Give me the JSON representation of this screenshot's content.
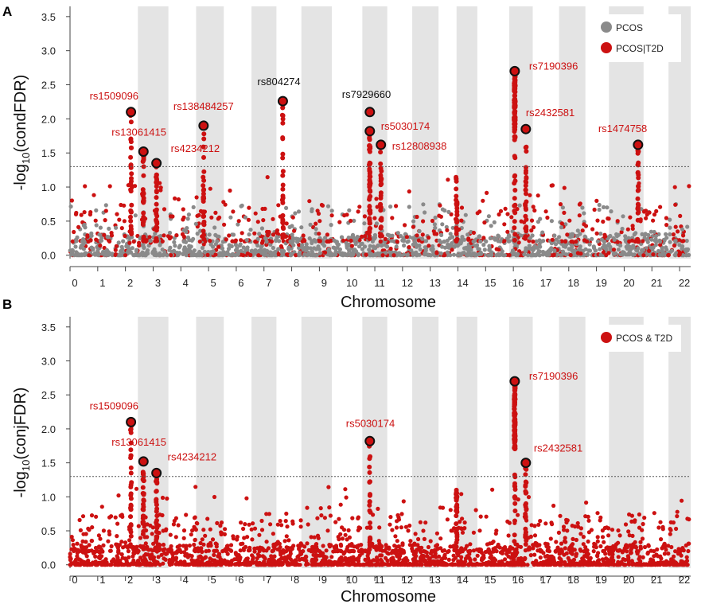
{
  "colors": {
    "red": "#cc1111",
    "gray": "#8a8a8a",
    "band": "#e4e4e4",
    "threshold": "#555555"
  },
  "chart_data": [
    {
      "type": "scatter",
      "panel_label": "A",
      "title": "",
      "xlabel": "Chromosome",
      "ylabel_prefix": "-log",
      "ylabel_sub": "10",
      "ylabel_suffix": "(condFDR)",
      "ylim": [
        -0.05,
        3.65
      ],
      "yticks": [
        "0.0",
        "0.5",
        "1.0",
        "1.5",
        "2.0",
        "2.5",
        "3.0",
        "3.5"
      ],
      "xlim": [
        0,
        22.4
      ],
      "xticks": [
        "0",
        "1",
        "2",
        "3",
        "4",
        "5",
        "6",
        "7",
        "8",
        "9",
        "10",
        "11",
        "12",
        "13",
        "14",
        "15",
        "16",
        "17",
        "18",
        "19",
        "20",
        "21",
        "22"
      ],
      "threshold": 1.3,
      "series": [
        {
          "name": "PCOS",
          "color": "gray"
        },
        {
          "name": "PCOS|T2D",
          "color": "red"
        }
      ],
      "legend": {
        "position": "top-right",
        "entries": [
          "PCOS",
          "PCOS|T2D"
        ]
      },
      "lead_snps": [
        {
          "name": "rs1509096",
          "x": 2.2,
          "y": 2.1,
          "label_color": "red"
        },
        {
          "name": "rs13061415",
          "x": 2.65,
          "y": 1.52,
          "label_color": "red"
        },
        {
          "name": "rs4234212",
          "x": 3.12,
          "y": 1.35,
          "label_color": "red"
        },
        {
          "name": "rs138484257",
          "x": 4.82,
          "y": 1.9,
          "label_color": "red"
        },
        {
          "name": "rs804274",
          "x": 7.68,
          "y": 2.26,
          "label_color": "black"
        },
        {
          "name": "rs7929660",
          "x": 10.82,
          "y": 2.1,
          "label_color": "black"
        },
        {
          "name": "rs5030174",
          "x": 10.82,
          "y": 1.82,
          "label_color": "red"
        },
        {
          "name": "rs12808938",
          "x": 11.22,
          "y": 1.62,
          "label_color": "red"
        },
        {
          "name": "rs7190396",
          "x": 16.05,
          "y": 2.7,
          "label_color": "red"
        },
        {
          "name": "rs2432581",
          "x": 16.45,
          "y": 1.85,
          "label_color": "red"
        },
        {
          "name": "rs1474758",
          "x": 20.5,
          "y": 1.62,
          "label_color": "red"
        }
      ]
    },
    {
      "type": "scatter",
      "panel_label": "B",
      "title": "",
      "xlabel": "Chromosome",
      "ylabel_prefix": "-log",
      "ylabel_sub": "10",
      "ylabel_suffix": "(conjFDR)",
      "ylim": [
        -0.05,
        3.65
      ],
      "yticks": [
        "0.0",
        "0.5",
        "1.0",
        "1.5",
        "2.0",
        "2.5",
        "3.0",
        "3.5"
      ],
      "xlim": [
        0,
        22.4
      ],
      "xticks": [
        "0",
        "1",
        "2",
        "3",
        "4",
        "5",
        "6",
        "7",
        "8",
        "9",
        "10",
        "11",
        "12",
        "13",
        "14",
        "15",
        "16",
        "17",
        "18",
        "19",
        "20",
        "21",
        "22"
      ],
      "threshold": 1.3,
      "series": [
        {
          "name": "PCOS & T2D",
          "color": "red"
        }
      ],
      "legend": {
        "position": "top-right",
        "entries": [
          "PCOS & T2D"
        ]
      },
      "lead_snps": [
        {
          "name": "rs1509096",
          "x": 2.2,
          "y": 2.1,
          "label_color": "red"
        },
        {
          "name": "rs13061415",
          "x": 2.65,
          "y": 1.52,
          "label_color": "red"
        },
        {
          "name": "rs4234212",
          "x": 3.12,
          "y": 1.35,
          "label_color": "red"
        },
        {
          "name": "rs5030174",
          "x": 10.82,
          "y": 1.82,
          "label_color": "red"
        },
        {
          "name": "rs7190396",
          "x": 16.05,
          "y": 2.7,
          "label_color": "red"
        },
        {
          "name": "rs2432581",
          "x": 16.45,
          "y": 1.5,
          "label_color": "red"
        }
      ]
    }
  ]
}
